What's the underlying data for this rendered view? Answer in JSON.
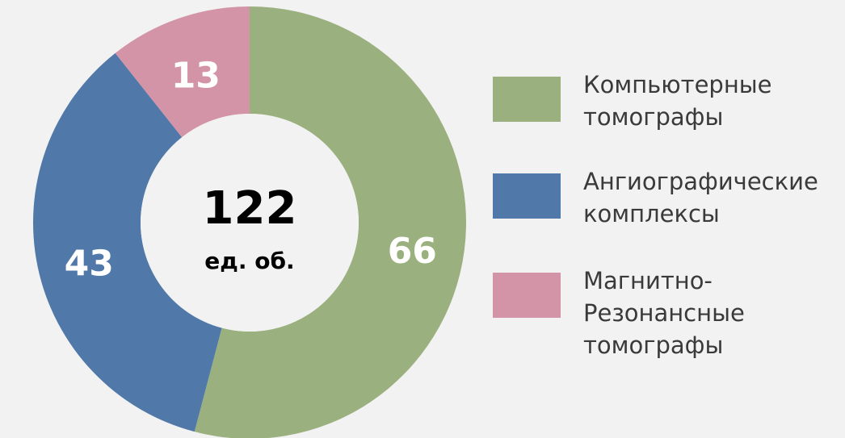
{
  "chart_data": {
    "type": "donut",
    "categories": [
      "Компьютерные томографы",
      "Ангиографические комплексы",
      "Магнитно-Резонансные томографы"
    ],
    "values": [
      66,
      43,
      13
    ],
    "colors": [
      "#9bb07f",
      "#5078a8",
      "#d394a8"
    ],
    "total": 122,
    "total_unit": "ед. об."
  }
}
